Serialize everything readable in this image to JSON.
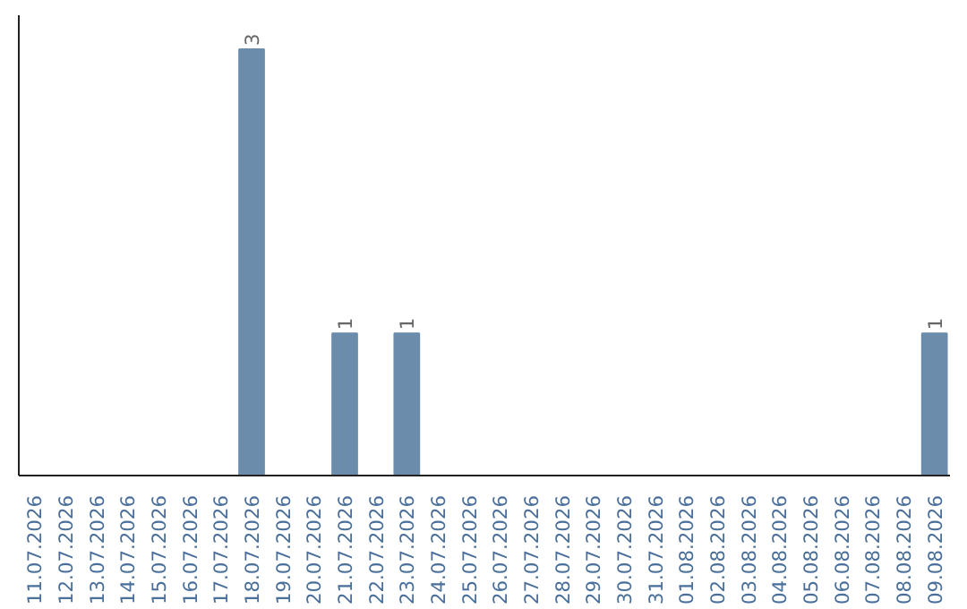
{
  "chart_data": {
    "type": "bar",
    "categories": [
      "11.07.2026",
      "12.07.2026",
      "13.07.2026",
      "14.07.2026",
      "15.07.2026",
      "16.07.2026",
      "17.07.2026",
      "18.07.2026",
      "19.07.2026",
      "20.07.2026",
      "21.07.2026",
      "22.07.2026",
      "23.07.2026",
      "24.07.2026",
      "25.07.2026",
      "26.07.2026",
      "27.07.2026",
      "28.07.2026",
      "29.07.2026",
      "30.07.2026",
      "31.07.2026",
      "01.08.2026",
      "02.08.2026",
      "03.08.2026",
      "04.08.2026",
      "05.08.2026",
      "06.08.2026",
      "07.08.2026",
      "08.08.2026",
      "09.08.2026"
    ],
    "values": [
      0,
      0,
      0,
      0,
      0,
      0,
      0,
      3,
      0,
      0,
      1,
      0,
      1,
      0,
      0,
      0,
      0,
      0,
      0,
      0,
      0,
      0,
      0,
      0,
      0,
      0,
      0,
      0,
      0,
      1
    ],
    "value_labels": [
      null,
      null,
      null,
      null,
      null,
      null,
      null,
      "3",
      null,
      null,
      "1",
      null,
      "1",
      null,
      null,
      null,
      null,
      null,
      null,
      null,
      null,
      null,
      null,
      null,
      null,
      null,
      null,
      null,
      null,
      "1"
    ],
    "color": "#6b8caa",
    "grid": false
  }
}
